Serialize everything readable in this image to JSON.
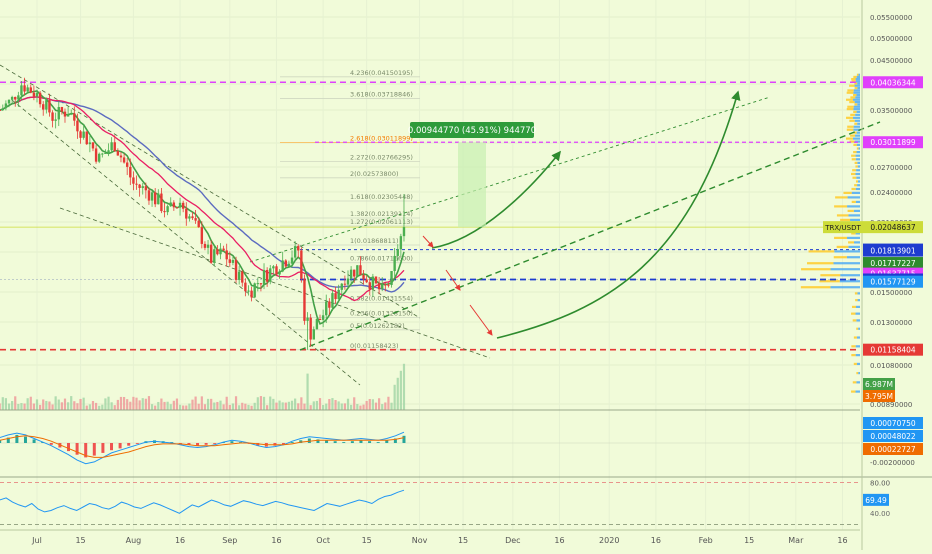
{
  "chart_data": {
    "type": "candlestick",
    "symbol_label": "TRX/USDT",
    "price_scale": {
      "min": 0.0088,
      "max": 0.0555,
      "ticks": [
        "0.05500000",
        "0.05000000",
        "0.04500000",
        "0.04000000",
        "0.03500000",
        "0.03000000",
        "0.02700000",
        "0.02400000",
        "0.02100000",
        "0.01800000",
        "0.01500000",
        "0.01300000",
        "0.01080000",
        "0.00890000"
      ]
    },
    "x_axis": {
      "labels": [
        "Jul",
        "15",
        "Aug",
        "16",
        "Sep",
        "16",
        "Oct",
        "15",
        "Nov",
        "15",
        "Dec",
        "16",
        "2020",
        "16",
        "Feb",
        "15",
        "Mar",
        "16"
      ],
      "total_days": 278
    },
    "price_tags": [
      {
        "value": 0.04036344,
        "text": "0.04036344",
        "color": "#e040fb"
      },
      {
        "value": 0.03011899,
        "text": "0.03011899",
        "color": "#e040fb"
      },
      {
        "value": 0.02048637,
        "text": "0.02048637",
        "color": "#cddc39",
        "prefix": "TRX/USDT"
      },
      {
        "value": 0.01824266,
        "text": "0.01824266",
        "color": "#1e3ccf"
      },
      {
        "value": 0.01813901,
        "text": "0.01813901",
        "color": "#1e3ccf"
      },
      {
        "value": 0.01717227,
        "text": "0.01717227",
        "color": "#2e8b2e"
      },
      {
        "value": 0.01637715,
        "text": "0.01637715",
        "color": "#e040fb"
      },
      {
        "value": 0.01593837,
        "text": "0.01593837",
        "color": "#1e3ccf"
      },
      {
        "value": 0.01577129,
        "text": "0.01577129",
        "color": "#2196f3"
      },
      {
        "value": 0.01158404,
        "text": "0.01158404",
        "color": "#e53935"
      }
    ],
    "fib_levels": [
      {
        "text": "4.236(0.04150195)",
        "value": 0.0415
      },
      {
        "text": "3.618(0.03718846)",
        "value": 0.0372
      },
      {
        "text": "2.618(0.03011899)",
        "value": 0.0301
      },
      {
        "text": "2.272(0.02766295)",
        "value": 0.0277
      },
      {
        "text": "2(0.02573800)",
        "value": 0.0257
      },
      {
        "text": "1.618(0.02305448)",
        "value": 0.0231
      },
      {
        "text": "1.382(0.02139114)",
        "value": 0.0214
      },
      {
        "text": "1.272(0.02061113)",
        "value": 0.0206
      },
      {
        "text": "1(0.01868811)",
        "value": 0.0187
      },
      {
        "text": "0.786(0.01716600)",
        "value": 0.0172
      },
      {
        "text": "0.382(0.01431554)",
        "value": 0.0143
      },
      {
        "text": "0.236(0.01328150)",
        "value": 0.0133
      },
      {
        "text": "0.5(0.01262182)",
        "value": 0.0126
      },
      {
        "text": "0(0.01158423)",
        "value": 0.01158
      }
    ],
    "measure_label": "0.00944770 (45.91%) 944770",
    "volume_tags": [
      {
        "text": "6.987M",
        "color": "#43a047"
      },
      {
        "text": "3.795M",
        "color": "#ef6c00"
      }
    ],
    "macd": {
      "tags": [
        {
          "text": "0.00070750",
          "color": "#2196f3"
        },
        {
          "text": "0.00048022",
          "color": "#2196f3"
        },
        {
          "text": "0.00022727",
          "color": "#ef6c00"
        }
      ],
      "axis_label": "-0.00200000",
      "histogram": [
        0.3,
        0.6,
        0.9,
        0.7,
        0.4,
        0.1,
        -0.2,
        -0.5,
        -0.9,
        -1.3,
        -1.6,
        -1.4,
        -1.1,
        -0.8,
        -0.6,
        -0.3,
        -0.1,
        0.2,
        0.3,
        0.2,
        0.1,
        -0.1,
        -0.2,
        -0.3,
        -0.2,
        -0.1,
        0.1,
        0.2,
        0.1,
        -0.1,
        -0.3,
        -0.4,
        -0.3,
        -0.2,
        0.1,
        0.3,
        0.5,
        0.4,
        0.3,
        0.2,
        0.1,
        0.2,
        0.3,
        0.2,
        0.1,
        0.3,
        0.5,
        0.8
      ],
      "macd_line": [
        0.6,
        0.9,
        1.1,
        0.9,
        0.5,
        0.1,
        -0.3,
        -0.8,
        -1.3,
        -1.9,
        -2.3,
        -2.1,
        -1.6,
        -1.1,
        -0.8,
        -0.5,
        -0.2,
        0.1,
        0.2,
        0.1,
        0.0,
        -0.2,
        -0.4,
        -0.5,
        -0.4,
        -0.2,
        0.1,
        0.3,
        0.2,
        0.0,
        -0.3,
        -0.5,
        -0.4,
        -0.2,
        0.2,
        0.5,
        0.7,
        0.6,
        0.5,
        0.4,
        0.3,
        0.4,
        0.5,
        0.4,
        0.3,
        0.5,
        0.8,
        1.2
      ],
      "signal_line": [
        0.3,
        0.5,
        0.7,
        0.8,
        0.7,
        0.5,
        0.2,
        -0.2,
        -0.6,
        -1.0,
        -1.4,
        -1.6,
        -1.6,
        -1.4,
        -1.2,
        -1.0,
        -0.7,
        -0.4,
        -0.2,
        -0.1,
        -0.1,
        -0.1,
        -0.2,
        -0.3,
        -0.3,
        -0.3,
        -0.2,
        -0.1,
        0.0,
        0.0,
        -0.1,
        -0.2,
        -0.2,
        -0.2,
        -0.1,
        0.1,
        0.2,
        0.3,
        0.3,
        0.3,
        0.3,
        0.3,
        0.3,
        0.3,
        0.3,
        0.3,
        0.4,
        0.6
      ]
    },
    "rsi": {
      "tags": [
        {
          "text": "69.49",
          "color": "#2196f3"
        },
        {
          "text": "40.00",
          "color": "#666666"
        }
      ],
      "axis_label": "80.00",
      "values": [
        55,
        58,
        52,
        48,
        45,
        50,
        42,
        38,
        40,
        44,
        47,
        43,
        40,
        45,
        50,
        48,
        44,
        42,
        46,
        52,
        49,
        45,
        43,
        47,
        51,
        48,
        44,
        40,
        36,
        42,
        48,
        45,
        50,
        55,
        52,
        48,
        46,
        50,
        54,
        52,
        49,
        47,
        50,
        53,
        51,
        48,
        46,
        44,
        42,
        40,
        45,
        50,
        48,
        46,
        49,
        52,
        55,
        53,
        50,
        56,
        60,
        62,
        66,
        69
      ]
    }
  }
}
